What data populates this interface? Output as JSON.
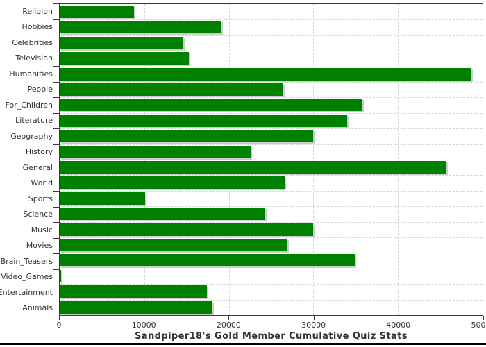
{
  "chart_data": {
    "type": "bar",
    "orientation": "horizontal",
    "title": "Sandpiper18's Gold Member Cumulative Quiz Stats",
    "categories": [
      "Religion",
      "Hobbies",
      "Celebrities",
      "Television",
      "Humanities",
      "People",
      "For_Children",
      "Literature",
      "Geography",
      "History",
      "General",
      "World",
      "Sports",
      "Science",
      "Music",
      "Movies",
      "Brain_Teasers",
      "Video_Games",
      "Entertainment",
      "Animals"
    ],
    "values": [
      8800,
      19100,
      14600,
      15300,
      48700,
      26400,
      35800,
      34000,
      30000,
      22600,
      45700,
      26600,
      10100,
      24300,
      30000,
      26900,
      34900,
      200,
      17400,
      18100
    ],
    "xlabel": "",
    "ylabel": "",
    "xlim": [
      0,
      50000
    ],
    "x_ticks": [
      0,
      10000,
      20000,
      30000,
      40000,
      50000
    ],
    "x_tick_labels": [
      "0",
      "10000",
      "20000",
      "30000",
      "40000",
      "50000"
    ],
    "grid": "dashed",
    "legend": "none",
    "bar_color": "#008000",
    "bar_shadow_color": "#cccccc",
    "gridline_color": "#d4d4d4",
    "axis_color": "#3a3a3a",
    "text_color": "#333333"
  }
}
